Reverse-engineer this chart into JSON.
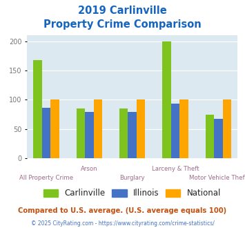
{
  "title_line1": "2019 Carlinville",
  "title_line2": "Property Crime Comparison",
  "categories": [
    "All Property Crime",
    "Arson",
    "Burglary",
    "Larceny & Theft",
    "Motor Vehicle Theft"
  ],
  "series": {
    "Carlinville": [
      168,
      85,
      85,
      199,
      75
    ],
    "Illinois": [
      87,
      79,
      79,
      93,
      68
    ],
    "National": [
      100,
      100,
      100,
      100,
      100
    ]
  },
  "colors": {
    "Carlinville": "#7fc41e",
    "Illinois": "#4472c4",
    "National": "#ffa500"
  },
  "ylim": [
    0,
    210
  ],
  "yticks": [
    0,
    50,
    100,
    150,
    200
  ],
  "plot_bg": "#dce9f0",
  "title_color": "#1565c0",
  "xlabel_color": "#9e6b8a",
  "footer_text": "Compared to U.S. average. (U.S. average equals 100)",
  "copyright_text": "© 2025 CityRating.com - https://www.cityrating.com/crime-statistics/",
  "footer_color": "#c05010",
  "copyright_color": "#4472c4",
  "grid_color": "#ffffff",
  "stagger_up": [
    "Arson",
    "Larceny & Theft"
  ],
  "stagger_down": [
    "All Property Crime",
    "Burglary",
    "Motor Vehicle Theft"
  ]
}
